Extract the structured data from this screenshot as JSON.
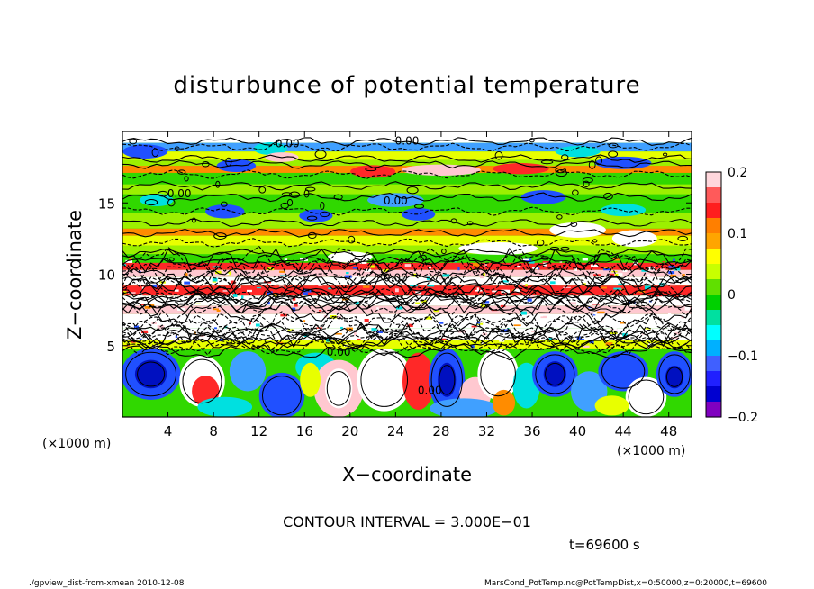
{
  "chart_data": {
    "type": "heatmap",
    "title": "disturbunce of potential temperature",
    "xlabel": "X−coordinate",
    "ylabel": "Z−coordinate",
    "x_unit": "(×1000 m)",
    "y_unit": "(×1000 m)",
    "xlim": [
      0,
      50
    ],
    "ylim": [
      0,
      20
    ],
    "x_ticks": [
      4,
      8,
      12,
      16,
      20,
      24,
      28,
      32,
      36,
      40,
      44,
      48
    ],
    "y_ticks": [
      5,
      10,
      15
    ],
    "colorbar": {
      "range": [
        -0.2,
        0.2
      ],
      "ticks": [
        {
          "value": 0.2,
          "label": "0.2"
        },
        {
          "value": 0.1,
          "label": "0.1"
        },
        {
          "value": 0,
          "label": "0"
        },
        {
          "value": -0.1,
          "label": "−0.1"
        },
        {
          "value": -0.2,
          "label": "−0.2"
        }
      ],
      "colors": [
        "#ffd7dc",
        "#ff5a5a",
        "#ff1e1e",
        "#ff7f00",
        "#ffa500",
        "#ffff00",
        "#c8ff00",
        "#60e000",
        "#00d000",
        "#00e0a0",
        "#00ffff",
        "#00b0ff",
        "#4060ff",
        "#2020ff",
        "#0000d0",
        "#8000c0"
      ]
    },
    "contour_interval": "CONTOUR INTERVAL = 3.000E−01",
    "contour_labels": [
      "0.00",
      "0.00",
      "0.00",
      "0.00",
      "0.00",
      "0.00",
      "0.00"
    ],
    "time_label": "t=69600 s"
  },
  "footer": {
    "left": "./gpview_dist-from-xmean  2010-12-08",
    "right": "MarsCond_PotTemp.nc@PotTempDist,x=0:50000,z=0:20000,t=69600"
  }
}
